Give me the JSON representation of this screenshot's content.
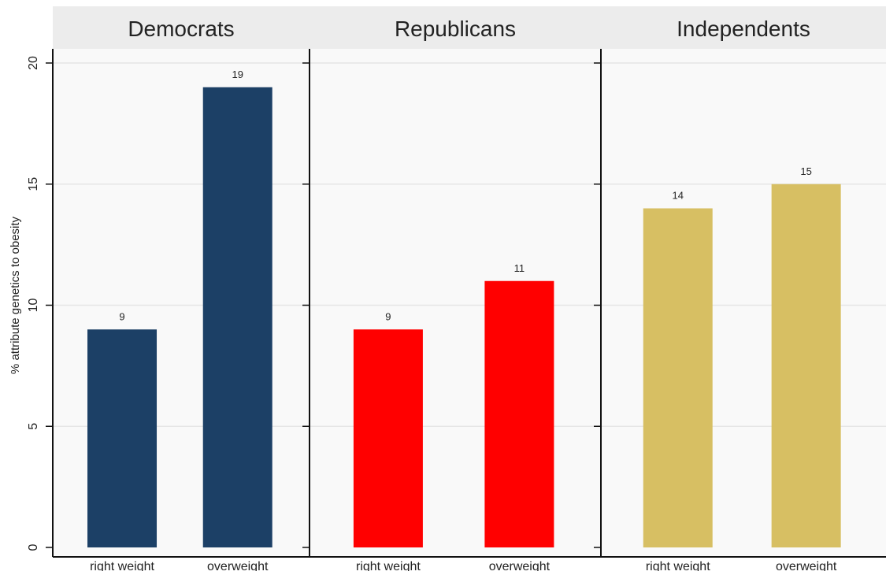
{
  "chart_data": {
    "type": "bar",
    "ylabel": "% attribute genetics to obesity",
    "ylim": [
      0,
      20
    ],
    "yticks": [
      0,
      5,
      10,
      15,
      20
    ],
    "grid": true,
    "categories": [
      "right weight",
      "overweight"
    ],
    "panels": [
      {
        "name": "Democrats",
        "color": "#1c4066",
        "values": [
          9,
          19
        ]
      },
      {
        "name": "Republicans",
        "color": "#ff0000",
        "values": [
          9,
          11
        ]
      },
      {
        "name": "Independents",
        "color": "#d7bf63",
        "values": [
          14,
          15
        ]
      }
    ]
  },
  "colors": {
    "panel_background": "#f9f9f9",
    "header_background": "#ececec",
    "gridline": "#e6e6e6",
    "axis": "#111111"
  }
}
